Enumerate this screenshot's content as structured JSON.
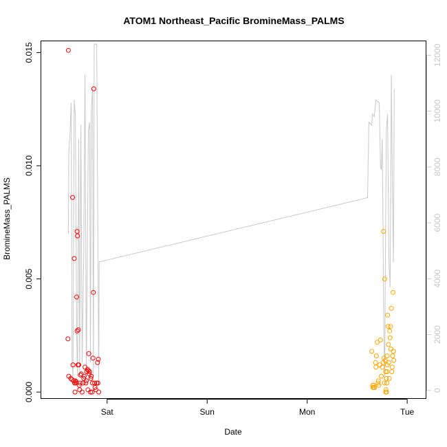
{
  "chart_data": {
    "type": "scatter",
    "title": "ATOM1 Northeast_Pacific BromineMass_PALMS",
    "xlabel": "Date",
    "ylabel": "BromineMass_PALMS",
    "x_axis_type": "time",
    "xlim_hours": [
      -15.8,
      76.6
    ],
    "ylim": [
      -0.0003,
      0.0155
    ],
    "y2lim": [
      -300,
      12500
    ],
    "x_ticks": [
      {
        "label": "Sat",
        "hour": 0
      },
      {
        "label": "Sun",
        "hour": 24
      },
      {
        "label": "Mon",
        "hour": 48
      },
      {
        "label": "Tue",
        "hour": 72
      }
    ],
    "y_ticks": [
      {
        "label": "0.000",
        "value": 0
      },
      {
        "label": "0.005",
        "value": 0.005
      },
      {
        "label": "0.010",
        "value": 0.01
      },
      {
        "label": "0.015",
        "value": 0.015
      }
    ],
    "y2_ticks": [
      {
        "label": "0",
        "value": 0
      },
      {
        "label": "2000",
        "value": 2000
      },
      {
        "label": "4000",
        "value": 4000
      },
      {
        "label": "6000",
        "value": 6000
      },
      {
        "label": "8000",
        "value": 8000
      },
      {
        "label": "10000",
        "value": 10000
      },
      {
        "label": "12000",
        "value": 12000
      }
    ],
    "grid": false,
    "series": [
      {
        "color": "#ff0000",
        "marker": "open-circle",
        "axis": "left",
        "points": [
          [
            -9.3,
            0.0151
          ],
          [
            -9.4,
            0.00235
          ],
          [
            -9.2,
            0.0007
          ],
          [
            -8.7,
            0.0006
          ],
          [
            -8.4,
            0.00055
          ],
          [
            -8.3,
            0.0086
          ],
          [
            -8.2,
            0.0012
          ],
          [
            -8.0,
            0.0005
          ],
          [
            -7.9,
            0.0059
          ],
          [
            -7.8,
            0.0004
          ],
          [
            -7.7,
            0.0
          ],
          [
            -7.6,
            0.0005
          ],
          [
            -7.5,
            0.0004
          ],
          [
            -7.4,
            0.00045
          ],
          [
            -7.3,
            0.0042
          ],
          [
            -7.2,
            0.0071
          ],
          [
            -7.1,
            0.0069
          ],
          [
            -7.2,
            0.0027
          ],
          [
            -7.0,
            0.0012
          ],
          [
            -6.9,
            0.00275
          ],
          [
            -6.8,
            0.0012
          ],
          [
            -6.7,
            0.0003
          ],
          [
            -6.6,
            0.0001
          ],
          [
            -6.5,
            0.0004
          ],
          [
            -6.4,
            0.00075
          ],
          [
            -6.2,
            0.0008
          ],
          [
            -6.0,
            0.0
          ],
          [
            -5.8,
            0.0004
          ],
          [
            -5.6,
            0.0006
          ],
          [
            -5.5,
            0.0007
          ],
          [
            -5.3,
            0.0011
          ],
          [
            -5.1,
            0.0004
          ],
          [
            -5.0,
            0.0005
          ],
          [
            -4.9,
            0.0009
          ],
          [
            -4.7,
            0.001
          ],
          [
            -4.6,
            0.0001
          ],
          [
            -4.5,
            0.00095
          ],
          [
            -4.4,
            0.0017
          ],
          [
            -4.3,
            0.0008
          ],
          [
            -4.2,
            0.0009
          ],
          [
            -4.0,
            0.0
          ],
          [
            -3.9,
            0.0006
          ],
          [
            -3.8,
            0.0007
          ],
          [
            -3.6,
            0.0
          ],
          [
            -3.5,
            0.0004
          ],
          [
            -3.4,
            0.0015
          ],
          [
            -3.3,
            0.0044
          ],
          [
            -3.2,
            0.0134
          ],
          [
            -3.0,
            0.0004
          ],
          [
            -2.9,
            0.0002
          ],
          [
            -2.7,
            0.0001
          ],
          [
            -2.5,
            0.0004
          ],
          [
            -2.3,
            0.0013
          ],
          [
            -2.2,
            0.0004
          ],
          [
            -2.1,
            0.00145
          ],
          [
            -2.0,
            0.0
          ]
        ]
      },
      {
        "color": "#ffa500",
        "marker": "open-circle",
        "axis": "left",
        "points": [
          [
            63.5,
            0.0018
          ],
          [
            63.7,
            0.0003
          ],
          [
            63.8,
            0.0002
          ],
          [
            63.9,
            0.0002
          ],
          [
            64.0,
            0.0003
          ],
          [
            64.2,
            0.0002
          ],
          [
            64.4,
            0.0013
          ],
          [
            64.5,
            0.0011
          ],
          [
            64.6,
            0.0016
          ],
          [
            64.8,
            0.0022
          ],
          [
            65.0,
            0.0004
          ],
          [
            65.1,
            0.0005
          ],
          [
            65.2,
            0.0003
          ],
          [
            65.4,
            0.0012
          ],
          [
            65.6,
            0.0023
          ],
          [
            65.8,
            0.0007
          ],
          [
            66.0,
            0.0011
          ],
          [
            66.2,
            0.0013
          ],
          [
            66.3,
            0.0071
          ],
          [
            66.4,
            0.0015
          ],
          [
            66.5,
            0.0004
          ],
          [
            66.6,
            0.005
          ],
          [
            66.7,
            0.0014
          ],
          [
            66.8,
            0.0009
          ],
          [
            66.9,
            0.0001
          ],
          [
            67.0,
            0.0006
          ],
          [
            67.1,
            0.0004
          ],
          [
            67.2,
            0.0016
          ],
          [
            67.3,
            0.0034
          ],
          [
            67.4,
            0.0029
          ],
          [
            67.5,
            0.0021
          ],
          [
            67.6,
            0.0013
          ],
          [
            67.7,
            0.0006
          ],
          [
            67.8,
            0.0027
          ],
          [
            67.9,
            0.0024
          ],
          [
            68.0,
            0.0029
          ],
          [
            68.1,
            0.0019
          ],
          [
            68.2,
            0.0037
          ],
          [
            68.3,
            0.0009
          ],
          [
            68.4,
            0.0011
          ],
          [
            68.5,
            0.0016
          ],
          [
            68.6,
            0.0044
          ],
          [
            68.7,
            0.0018
          ],
          [
            68.8,
            0.0014
          ],
          [
            66.85,
            0.0
          ],
          [
            67.05,
            0.0
          ],
          [
            67.15,
            0.0009
          ],
          [
            67.25,
            0.0012
          ]
        ]
      }
    ],
    "line_series": {
      "color": "#c8c8c8",
      "axis": "right",
      "points": [
        [
          -9.3,
          5600
        ],
        [
          -9.2,
          8500
        ],
        [
          -8.9,
          9200
        ],
        [
          -8.6,
          10300
        ],
        [
          -8.4,
          1000
        ],
        [
          -8.2,
          500
        ],
        [
          -7.9,
          10400
        ],
        [
          -7.6,
          9800
        ],
        [
          -7.3,
          2000
        ],
        [
          -7.1,
          500
        ],
        [
          -6.8,
          9000
        ],
        [
          -6.6,
          600
        ],
        [
          -6.3,
          9500
        ],
        [
          -6.0,
          1000
        ],
        [
          -5.6,
          5000
        ],
        [
          -5.3,
          11300
        ],
        [
          -5.0,
          600
        ],
        [
          -4.5,
          9300
        ],
        [
          -4.2,
          9600
        ],
        [
          -4.0,
          1000
        ],
        [
          -3.8,
          10000
        ],
        [
          -3.5,
          10800
        ],
        [
          -3.3,
          500
        ],
        [
          -3.1,
          12400
        ],
        [
          -2.5,
          12400
        ],
        [
          -2.0,
          200
        ],
        [
          -1.9,
          4600
        ],
        [
          62.5,
          6900
        ],
        [
          62.8,
          9600
        ],
        [
          63.5,
          9500
        ],
        [
          63.7,
          9900
        ],
        [
          64.1,
          9800
        ],
        [
          64.5,
          10400
        ],
        [
          65.3,
          10300
        ],
        [
          65.6,
          8000
        ],
        [
          65.8,
          7900
        ],
        [
          66.0,
          9000
        ],
        [
          66.2,
          5800
        ],
        [
          66.4,
          2000
        ],
        [
          66.6,
          400
        ],
        [
          66.8,
          5300
        ],
        [
          67.0,
          9300
        ],
        [
          67.3,
          9900
        ],
        [
          67.6,
          4600
        ],
        [
          67.9,
          3700
        ],
        [
          68.2,
          11300
        ],
        [
          68.5,
          6700
        ],
        [
          68.7,
          4600
        ],
        [
          68.9,
          10800
        ]
      ]
    }
  }
}
